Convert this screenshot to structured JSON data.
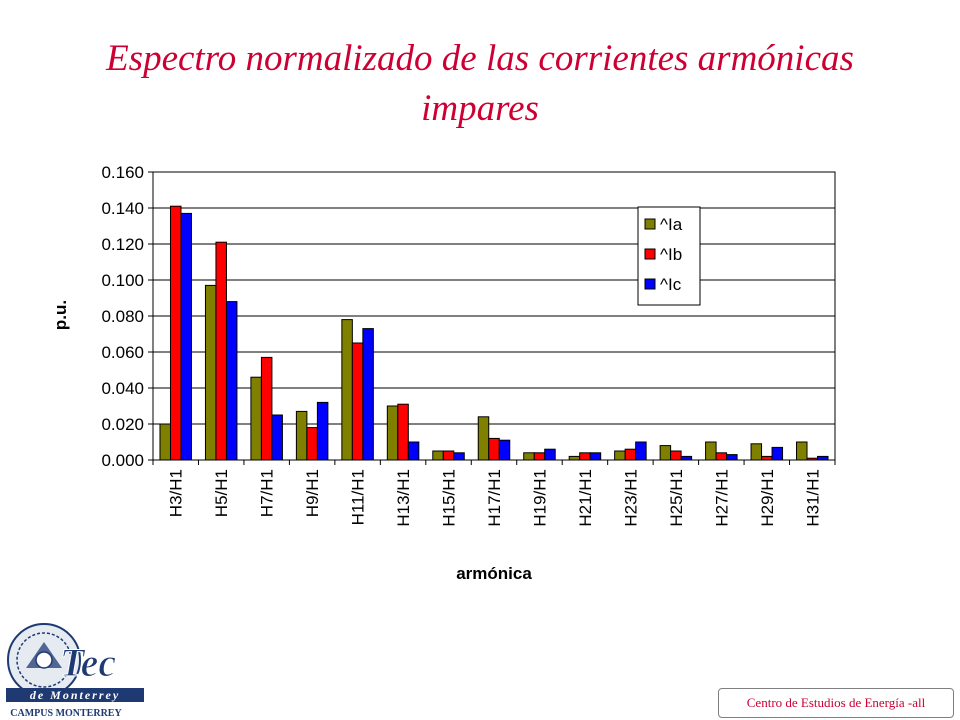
{
  "slide": {
    "title": "Espectro normalizado de las corrientes armónicas impares",
    "footer": "Centro de Estudios de Energía -all"
  },
  "logo": {
    "name": "Tec",
    "line2": "de Monterrey",
    "line3": "CAMPUS MONTERREY",
    "icon": "tec-de-monterrey-logo"
  },
  "colors": {
    "title": "#cc0033",
    "series_a": "#808000",
    "series_b": "#ff0000",
    "series_c": "#0000ff",
    "plot_bg": "#ffffff",
    "grid": "#000000"
  },
  "chart_data": {
    "type": "bar",
    "title": "",
    "xlabel": "armónica",
    "ylabel": "p.u.",
    "ylim": [
      0,
      0.16
    ],
    "yticks": [
      "0.000",
      "0.020",
      "0.040",
      "0.060",
      "0.080",
      "0.100",
      "0.120",
      "0.140",
      "0.160"
    ],
    "grid": true,
    "legend": "top-right",
    "categories": [
      "H3/H1",
      "H5/H1",
      "H7/H1",
      "H9/H1",
      "H11/H1",
      "H13/H1",
      "H15/H1",
      "H17/H1",
      "H19/H1",
      "H21/H1",
      "H23/H1",
      "H25/H1",
      "H27/H1",
      "H29/H1",
      "H31/H1"
    ],
    "series": [
      {
        "name": "^Ia",
        "values": [
          0.02,
          0.097,
          0.046,
          0.027,
          0.078,
          0.03,
          0.005,
          0.024,
          0.004,
          0.002,
          0.005,
          0.008,
          0.01,
          0.009,
          0.01
        ]
      },
      {
        "name": "^Ib",
        "values": [
          0.141,
          0.121,
          0.057,
          0.018,
          0.065,
          0.031,
          0.005,
          0.012,
          0.004,
          0.004,
          0.006,
          0.005,
          0.004,
          0.002,
          0.001
        ]
      },
      {
        "name": "^Ic",
        "values": [
          0.137,
          0.088,
          0.025,
          0.032,
          0.073,
          0.01,
          0.004,
          0.011,
          0.006,
          0.004,
          0.01,
          0.002,
          0.003,
          0.007,
          0.002
        ]
      }
    ]
  }
}
